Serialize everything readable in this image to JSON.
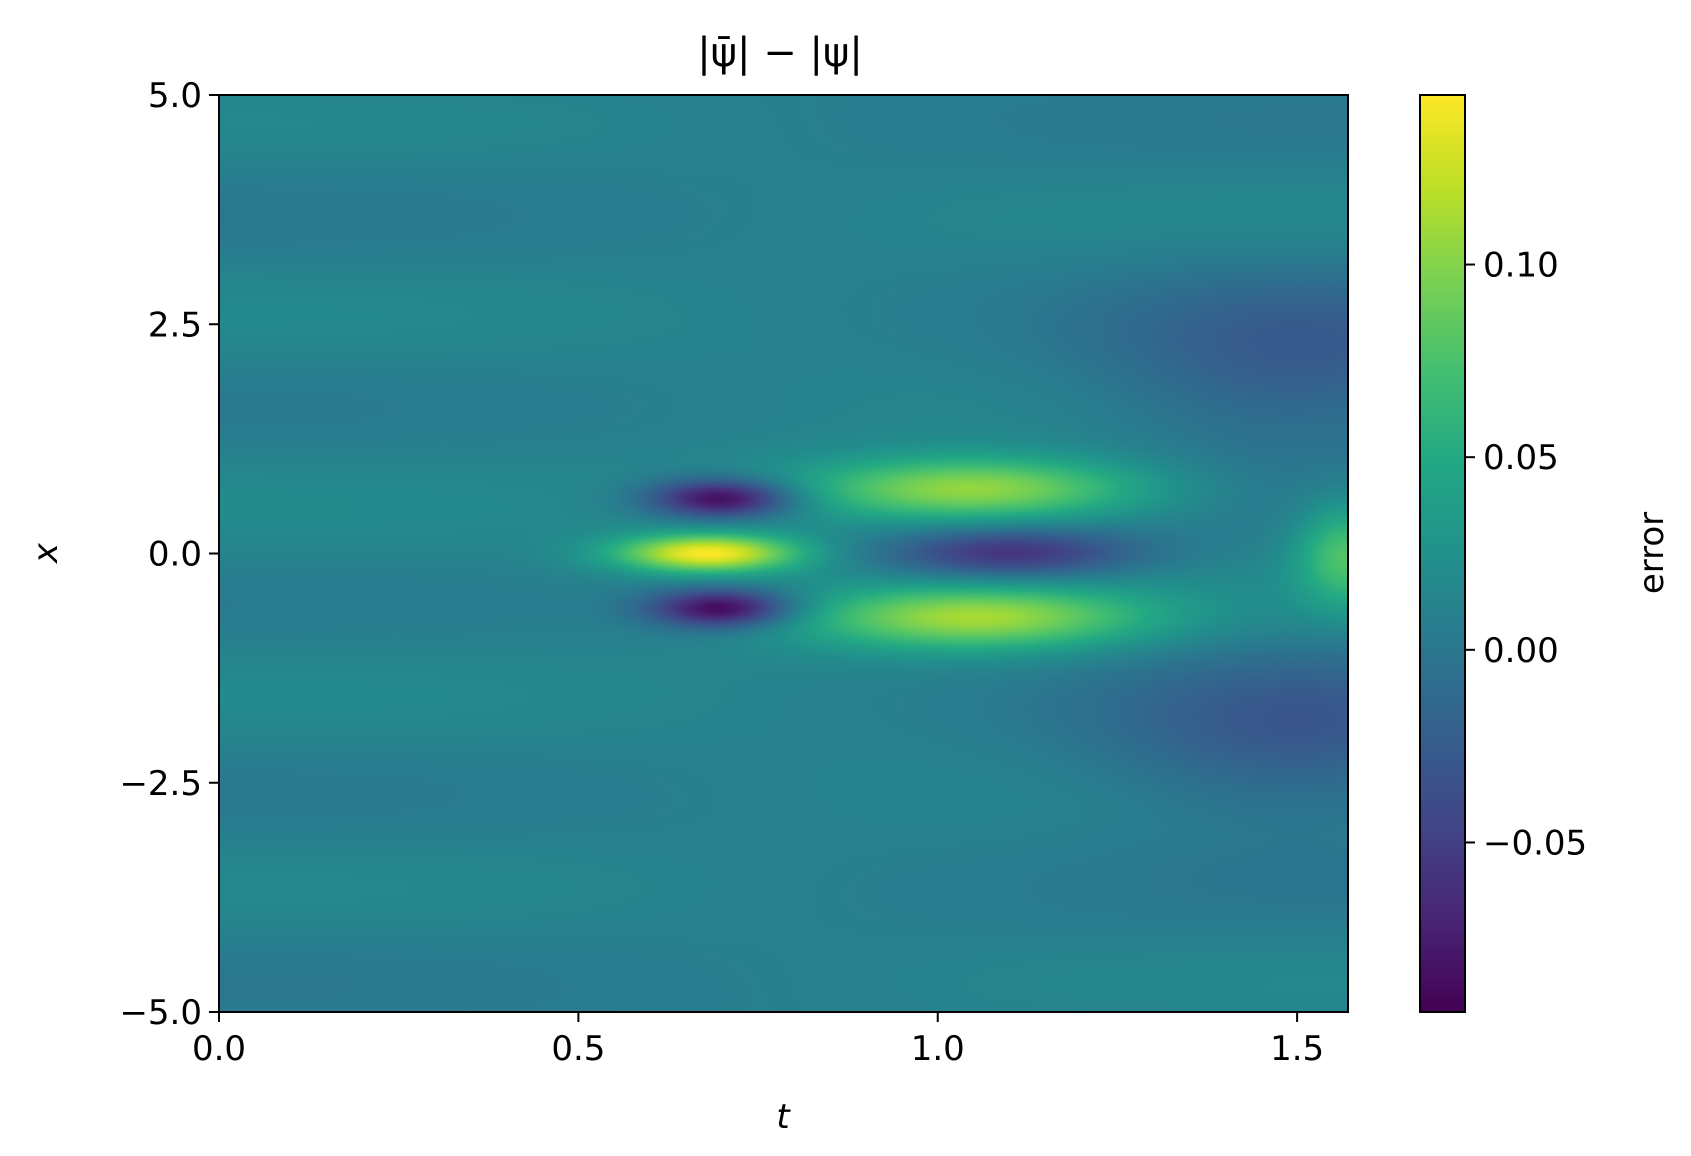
{
  "chart_data": {
    "type": "heatmap",
    "title": "|ψ̄| − |ψ|",
    "xlabel": "t",
    "ylabel": "x",
    "xlim": [
      0.0,
      1.5708
    ],
    "ylim": [
      -5.0,
      5.0
    ],
    "xticks": [
      0.0,
      0.5,
      1.0,
      1.5
    ],
    "xtick_labels": [
      "0.0",
      "0.5",
      "1.0",
      "1.5"
    ],
    "yticks": [
      -5.0,
      -2.5,
      0.0,
      2.5,
      5.0
    ],
    "ytick_labels": [
      "−5.0",
      "−2.5",
      "0.0",
      "2.5",
      "5.0"
    ],
    "colormap": "viridis",
    "colorbar": {
      "label": "error",
      "vmin": -0.094,
      "vmax": 0.144,
      "ticks": [
        -0.05,
        0.0,
        0.05,
        0.1
      ],
      "tick_labels": [
        "−0.05",
        "0.00",
        "0.05",
        "0.10"
      ]
    },
    "background_value": 0.012,
    "features": [
      {
        "t": 0.68,
        "x": 0.0,
        "value": 0.144,
        "sigma_t": 0.09,
        "sigma_x": 0.15
      },
      {
        "t": 0.7,
        "x": 0.6,
        "value": -0.094,
        "sigma_t": 0.07,
        "sigma_x": 0.15
      },
      {
        "t": 0.7,
        "x": -0.6,
        "value": -0.094,
        "sigma_t": 0.07,
        "sigma_x": 0.15
      },
      {
        "t": 1.05,
        "x": 0.7,
        "value": 0.11,
        "sigma_t": 0.17,
        "sigma_x": 0.25
      },
      {
        "t": 1.05,
        "x": -0.7,
        "value": 0.11,
        "sigma_t": 0.17,
        "sigma_x": 0.25
      },
      {
        "t": 1.1,
        "x": 0.0,
        "value": -0.06,
        "sigma_t": 0.12,
        "sigma_x": 0.2
      },
      {
        "t": 1.57,
        "x": 0.0,
        "value": 0.08,
        "sigma_t": 0.05,
        "sigma_x": 0.4
      },
      {
        "t": 1.5,
        "x": 2.0,
        "value": -0.025,
        "sigma_t": 0.2,
        "sigma_x": 0.7
      },
      {
        "t": 1.5,
        "x": -2.0,
        "value": -0.025,
        "sigma_t": 0.2,
        "sigma_x": 0.7
      }
    ]
  }
}
